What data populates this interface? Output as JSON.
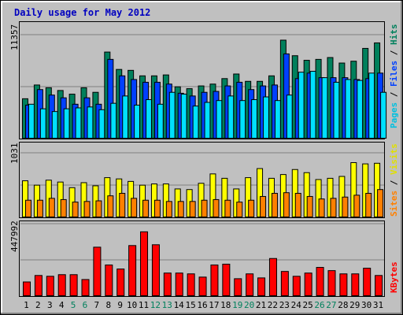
{
  "chart_data": [
    {
      "type": "bar",
      "title": "Daily usage for May 2012",
      "categories": [
        "1",
        "2",
        "3",
        "4",
        "5",
        "6",
        "7",
        "8",
        "9",
        "10",
        "11",
        "12",
        "13",
        "14",
        "15",
        "16",
        "17",
        "18",
        "19",
        "20",
        "21",
        "22",
        "23",
        "24",
        "25",
        "26",
        "27",
        "28",
        "29",
        "30",
        "31"
      ],
      "weekend_days": [
        "5",
        "6",
        "12",
        "13",
        "19",
        "20",
        "26",
        "27"
      ],
      "ylabel_max": "11357",
      "ylim": [
        0,
        11357
      ],
      "legend": [
        "Pages",
        "Files",
        "Hits"
      ],
      "series": [
        {
          "name": "Hits",
          "color": "#00805c",
          "values": [
            4400,
            5900,
            5600,
            5300,
            4900,
            5600,
            5100,
            9500,
            7600,
            7500,
            6900,
            6900,
            7000,
            5700,
            5500,
            5800,
            6000,
            6600,
            7100,
            6300,
            6300,
            6900,
            10800,
            9100,
            8600,
            8700,
            8900,
            8300,
            8500,
            9900,
            10500
          ]
        },
        {
          "name": "Files",
          "color": "#0040ff",
          "values": [
            3700,
            5400,
            4800,
            4500,
            3800,
            4500,
            3800,
            8700,
            6900,
            6500,
            6200,
            6200,
            6000,
            5000,
            4700,
            5100,
            5200,
            5800,
            6200,
            5400,
            5800,
            5900,
            9300,
            6600,
            7200,
            6700,
            6700,
            6700,
            6500,
            6600,
            7200
          ]
        },
        {
          "name": "Pages",
          "color": "#00e0ff",
          "values": [
            3800,
            3300,
            3000,
            3300,
            3400,
            3500,
            3200,
            3900,
            4700,
            3700,
            4300,
            3800,
            5100,
            4900,
            3600,
            4000,
            4200,
            4700,
            4200,
            4300,
            4600,
            4200,
            4800,
            7300,
            7400,
            6700,
            6200,
            6500,
            6400,
            7200,
            5100
          ]
        }
      ]
    },
    {
      "type": "bar",
      "ylabel_max": "1031",
      "ylim": [
        0,
        1031
      ],
      "legend": [
        "Sites",
        "Visits"
      ],
      "series": [
        {
          "name": "Visits",
          "color": "#ffff00",
          "values": [
            590,
            520,
            600,
            570,
            480,
            560,
            510,
            640,
            620,
            580,
            520,
            540,
            540,
            460,
            450,
            550,
            700,
            630,
            460,
            640,
            785,
            630,
            690,
            770,
            720,
            610,
            630,
            660,
            880,
            860,
            870
          ]
        },
        {
          "name": "Sites",
          "color": "#ff8000",
          "values": [
            280,
            280,
            310,
            290,
            250,
            260,
            270,
            350,
            390,
            310,
            280,
            280,
            260,
            260,
            260,
            280,
            290,
            280,
            250,
            280,
            340,
            390,
            400,
            390,
            340,
            300,
            310,
            330,
            360,
            390,
            450
          ]
        }
      ]
    },
    {
      "type": "bar",
      "ylabel_max": "447992",
      "ylim": [
        0,
        447992
      ],
      "legend": [
        "KBytes"
      ],
      "series": [
        {
          "name": "KBytes",
          "color": "#ff0000",
          "values": [
            90000,
            130000,
            125000,
            135000,
            135000,
            105000,
            305000,
            195000,
            170000,
            315000,
            400000,
            320000,
            145000,
            145000,
            140000,
            120000,
            195000,
            200000,
            110000,
            140000,
            115000,
            235000,
            155000,
            125000,
            145000,
            180000,
            160000,
            140000,
            140000,
            175000,
            130000
          ]
        }
      ]
    }
  ]
}
